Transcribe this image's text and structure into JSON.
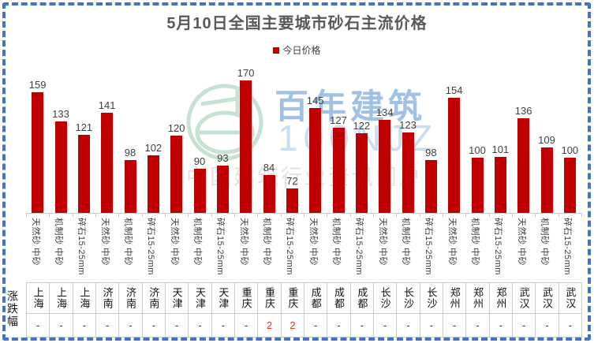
{
  "title": "5月10日全国主要城市砂石主流价格",
  "legend": {
    "label": "今日价格",
    "marker_color": "#C00000"
  },
  "watermark": {
    "logo": "green-circle-logo",
    "brand": "百年建筑",
    "brand_sub": "100NJZ",
    "tagline": "中国建筑行业资讯门户",
    "brand_color": "#8FB7DF",
    "sub_color": "#C8DDF1",
    "tagline_color": "#E2E2E2",
    "logo_color": "#B9DCC7"
  },
  "table": {
    "row_header": "涨跌幅",
    "dash": "-"
  },
  "colors": {
    "bar": "#C00000",
    "title": "#595959",
    "value_label": "#404040",
    "axis": "#C8C8C8",
    "frame_dashed_border": "#4472C4",
    "change_up": "#FF2B2B",
    "table_border": "#C9C9C9"
  },
  "chart_data": {
    "type": "bar",
    "title": "5月10日全国主要城市砂石主流价格",
    "series_name": "今日价格",
    "legend_position": "top",
    "grid": false,
    "ylim": [
      50,
      180
    ],
    "bar_color": "#C00000",
    "cities": [
      "上海",
      "济南",
      "天津",
      "重庆",
      "成都",
      "长沙",
      "郑州",
      "武汉"
    ],
    "spec_pattern": [
      "天然砂 中砂",
      "机制砂 中砂",
      "碎石15-25mm"
    ],
    "columns": [
      {
        "city": "上海",
        "spec": "天然砂 中砂",
        "value": 159,
        "change": "-"
      },
      {
        "city": "上海",
        "spec": "机制砂 中砂",
        "value": 133,
        "change": "-"
      },
      {
        "city": "上海",
        "spec": "碎石15-25mm",
        "value": 121,
        "change": "-"
      },
      {
        "city": "济南",
        "spec": "天然砂 中砂",
        "value": 141,
        "change": "-"
      },
      {
        "city": "济南",
        "spec": "机制砂 中砂",
        "value": 98,
        "change": "-"
      },
      {
        "city": "济南",
        "spec": "碎石15-25mm",
        "value": 102,
        "change": "-"
      },
      {
        "city": "天津",
        "spec": "天然砂 中砂",
        "value": 120,
        "change": "-"
      },
      {
        "city": "天津",
        "spec": "机制砂 中砂",
        "value": 90,
        "change": "-"
      },
      {
        "city": "天津",
        "spec": "碎石15-25mm",
        "value": 93,
        "change": "-"
      },
      {
        "city": "重庆",
        "spec": "天然砂 中砂",
        "value": 170,
        "change": "-"
      },
      {
        "city": "重庆",
        "spec": "机制砂 中砂",
        "value": 84,
        "change": "2"
      },
      {
        "city": "重庆",
        "spec": "碎石15-25mm",
        "value": 72,
        "change": "2"
      },
      {
        "city": "成都",
        "spec": "天然砂 中砂",
        "value": 145,
        "change": "-"
      },
      {
        "city": "成都",
        "spec": "机制砂 中砂",
        "value": 127,
        "change": "-"
      },
      {
        "city": "成都",
        "spec": "碎石15-25mm",
        "value": 122,
        "change": "-"
      },
      {
        "city": "长沙",
        "spec": "天然砂 中砂",
        "value": 134,
        "change": "-"
      },
      {
        "city": "长沙",
        "spec": "机制砂 中砂",
        "value": 123,
        "change": "-"
      },
      {
        "city": "长沙",
        "spec": "碎石15-25mm",
        "value": 98,
        "change": "-"
      },
      {
        "city": "郑州",
        "spec": "天然砂 中砂",
        "value": 154,
        "change": "-"
      },
      {
        "city": "郑州",
        "spec": "机制砂 中砂",
        "value": 100,
        "change": "-"
      },
      {
        "city": "郑州",
        "spec": "碎石15-25mm",
        "value": 101,
        "change": "-"
      },
      {
        "city": "武汉",
        "spec": "天然砂 中砂",
        "value": 136,
        "change": "-"
      },
      {
        "city": "武汉",
        "spec": "机制砂 中砂",
        "value": 109,
        "change": "-"
      },
      {
        "city": "武汉",
        "spec": "碎石15-25mm",
        "value": 100,
        "change": "-"
      }
    ]
  }
}
